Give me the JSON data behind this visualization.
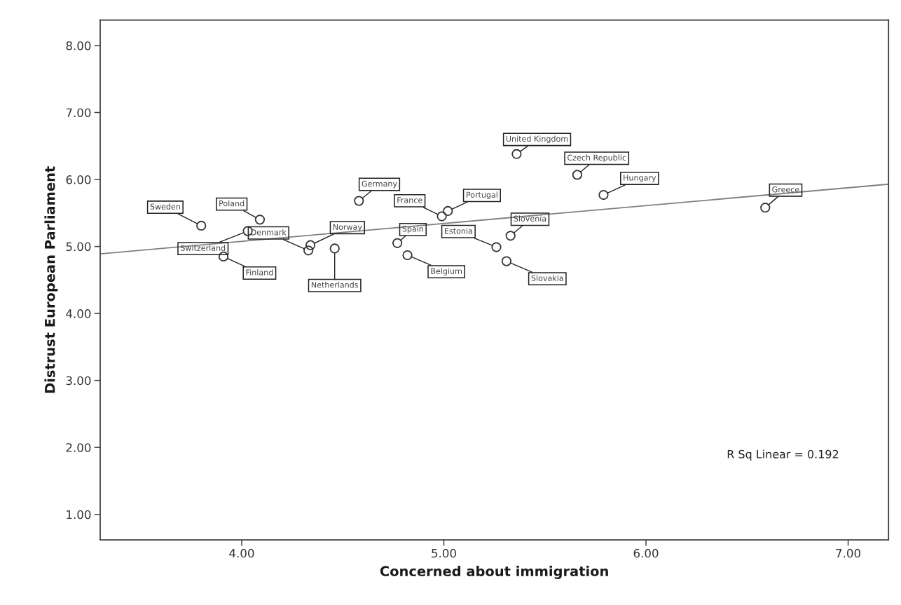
{
  "chart_data": {
    "type": "scatter",
    "xlabel": "Concerned about immigration",
    "ylabel": "Distrust European Parliament",
    "xlim": [
      3.3,
      7.2
    ],
    "ylim": [
      0.62,
      8.38
    ],
    "xticks": [
      {
        "value": 4,
        "label": "4.00"
      },
      {
        "value": 5,
        "label": "5.00"
      },
      {
        "value": 6,
        "label": "6.00"
      },
      {
        "value": 7,
        "label": "7.00"
      }
    ],
    "yticks": [
      {
        "value": 1,
        "label": "1.00"
      },
      {
        "value": 2,
        "label": "2.00"
      },
      {
        "value": 3,
        "label": "3.00"
      },
      {
        "value": 4,
        "label": "4.00"
      },
      {
        "value": 5,
        "label": "5.00"
      },
      {
        "value": 6,
        "label": "6.00"
      },
      {
        "value": 7,
        "label": "7.00"
      },
      {
        "value": 8,
        "label": "8.00"
      }
    ],
    "grid": false,
    "series": [
      {
        "marker": "circle",
        "color": "#333333",
        "x": [
          3.8,
          4.09,
          4.03,
          3.91,
          4.33,
          4.34,
          4.46,
          4.58,
          4.99,
          5.02,
          4.77,
          4.82,
          5.26,
          5.33,
          5.31,
          5.36,
          5.66,
          5.79,
          6.59
        ],
        "values": [
          5.31,
          5.4,
          5.23,
          4.85,
          4.94,
          5.02,
          4.97,
          5.68,
          5.45,
          5.53,
          5.05,
          4.87,
          4.99,
          5.16,
          4.78,
          6.38,
          6.07,
          5.77,
          5.58
        ]
      },
      {
        "type": "line",
        "color": "#808080",
        "x": [
          3.3,
          7.2
        ],
        "values": [
          4.89,
          5.93
        ]
      }
    ],
    "annotations": [
      {
        "text": "Sweden",
        "x": 3.8,
        "y": 5.31
      },
      {
        "text": "Poland",
        "x": 4.09,
        "y": 5.4
      },
      {
        "text": "Switzerland",
        "x": 4.03,
        "y": 5.23
      },
      {
        "text": "Finland",
        "x": 3.91,
        "y": 4.85
      },
      {
        "text": "Denmark",
        "x": 4.33,
        "y": 4.94
      },
      {
        "text": "Norway",
        "x": 4.34,
        "y": 5.02
      },
      {
        "text": "Netherlands",
        "x": 4.46,
        "y": 4.97
      },
      {
        "text": "Germany",
        "x": 4.58,
        "y": 5.68
      },
      {
        "text": "France",
        "x": 4.99,
        "y": 5.45
      },
      {
        "text": "Portugal",
        "x": 5.02,
        "y": 5.53
      },
      {
        "text": "Spain",
        "x": 4.77,
        "y": 5.05
      },
      {
        "text": "Belgium",
        "x": 4.82,
        "y": 4.87
      },
      {
        "text": "Estonia",
        "x": 5.26,
        "y": 4.99
      },
      {
        "text": "Slovenia",
        "x": 5.33,
        "y": 5.16
      },
      {
        "text": "Slovakia",
        "x": 5.31,
        "y": 4.78
      },
      {
        "text": "United Kingdom",
        "x": 5.36,
        "y": 6.38
      },
      {
        "text": "Czech Republic",
        "x": 5.66,
        "y": 6.07
      },
      {
        "text": "Hungary",
        "x": 5.79,
        "y": 5.77
      },
      {
        "text": "Greece",
        "x": 6.59,
        "y": 5.58
      },
      "R Sq Linear = 0.192"
    ]
  }
}
